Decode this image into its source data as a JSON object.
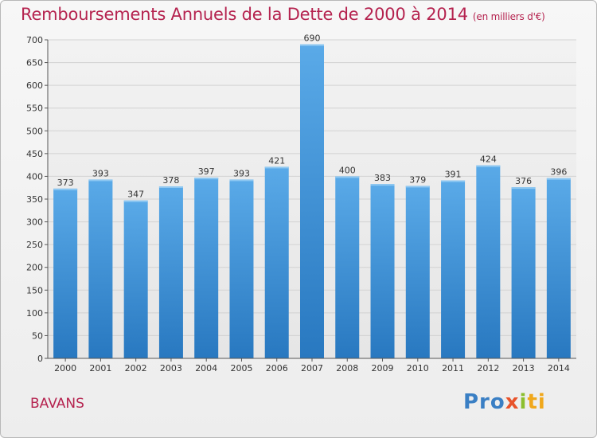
{
  "title": "Remboursements Annuels de la Dette de 2000 à 2014",
  "subtitle": "(en milliers d'€)",
  "town": "BAVANS",
  "logo": {
    "p1": "Pro",
    "p2": "x",
    "p3": "i",
    "p4": "ti"
  },
  "colors": {
    "title": "#b5234f",
    "bar_light": "#5aaae8",
    "bar_dark": "#2878c0"
  },
  "chart_data": {
    "type": "bar",
    "categories": [
      "2000",
      "2001",
      "2002",
      "2003",
      "2004",
      "2005",
      "2006",
      "2007",
      "2008",
      "2009",
      "2010",
      "2011",
      "2012",
      "2013",
      "2014"
    ],
    "values": [
      373,
      393,
      347,
      378,
      397,
      393,
      421,
      690,
      400,
      383,
      379,
      391,
      424,
      376,
      396
    ],
    "ylim": [
      0,
      700
    ],
    "yticks": [
      0,
      50,
      100,
      150,
      200,
      250,
      300,
      350,
      400,
      450,
      500,
      550,
      600,
      650,
      700
    ],
    "grid": true,
    "data_labels": true
  }
}
